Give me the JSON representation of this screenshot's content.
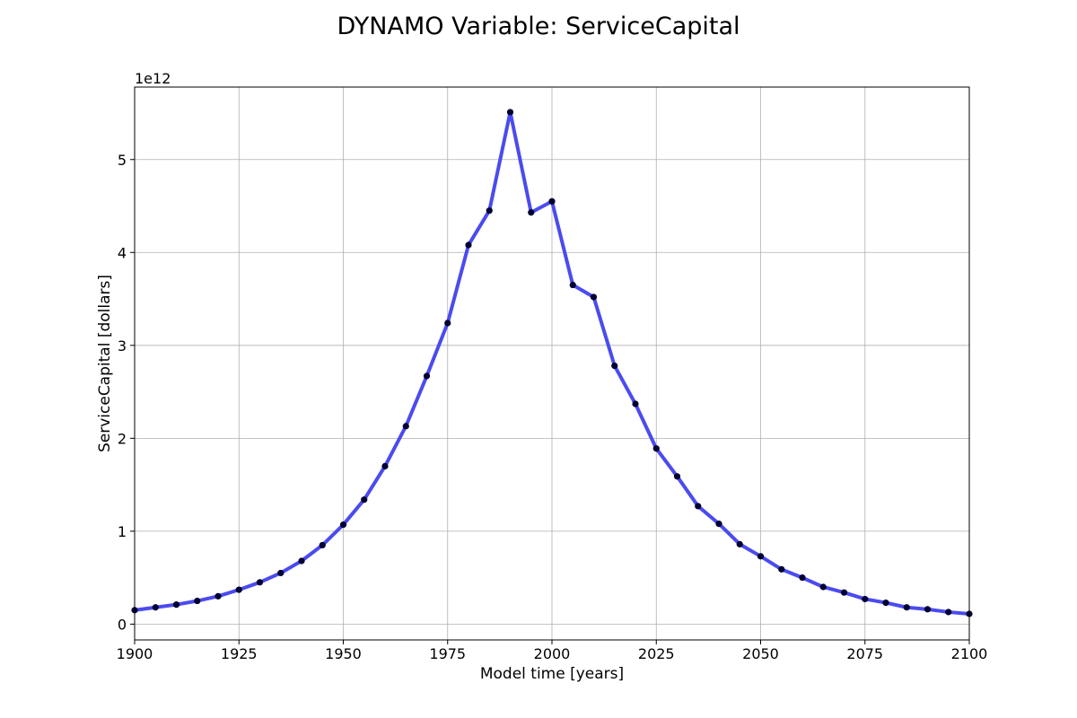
{
  "chart_data": {
    "type": "line",
    "title": "DYNAMO Variable: ServiceCapital",
    "xlabel": "Model time [years]",
    "ylabel": "ServiceCapital [dollars]",
    "y_offset_label": "1e12",
    "y_scale": 1000000000000.0,
    "xlim": [
      1900,
      2100
    ],
    "ylim": [
      -0.17,
      5.78
    ],
    "x_ticks": [
      1900,
      1925,
      1950,
      1975,
      2000,
      2025,
      2050,
      2075,
      2100
    ],
    "y_ticks": [
      0,
      1,
      2,
      3,
      4,
      5
    ],
    "grid": true,
    "series": [
      {
        "line_color": "#4b4bef",
        "marker_color": "#000033",
        "x": [
          1900,
          1905,
          1910,
          1915,
          1920,
          1925,
          1930,
          1935,
          1940,
          1945,
          1950,
          1955,
          1960,
          1965,
          1970,
          1975,
          1980,
          1985,
          1990,
          1995,
          2000,
          2005,
          2010,
          2015,
          2020,
          2025,
          2030,
          2035,
          2040,
          2045,
          2050,
          2055,
          2060,
          2065,
          2070,
          2075,
          2080,
          2085,
          2090,
          2095,
          2100
        ],
        "values": [
          0.15,
          0.18,
          0.21,
          0.25,
          0.3,
          0.37,
          0.45,
          0.55,
          0.68,
          0.85,
          1.07,
          1.34,
          1.7,
          2.13,
          2.67,
          3.24,
          4.08,
          4.45,
          5.51,
          4.43,
          4.55,
          3.65,
          3.52,
          2.78,
          2.37,
          1.89,
          1.59,
          1.27,
          1.08,
          0.86,
          0.73,
          0.59,
          0.5,
          0.4,
          0.34,
          0.27,
          0.23,
          0.18,
          0.16,
          0.13,
          0.11
        ]
      }
    ]
  }
}
